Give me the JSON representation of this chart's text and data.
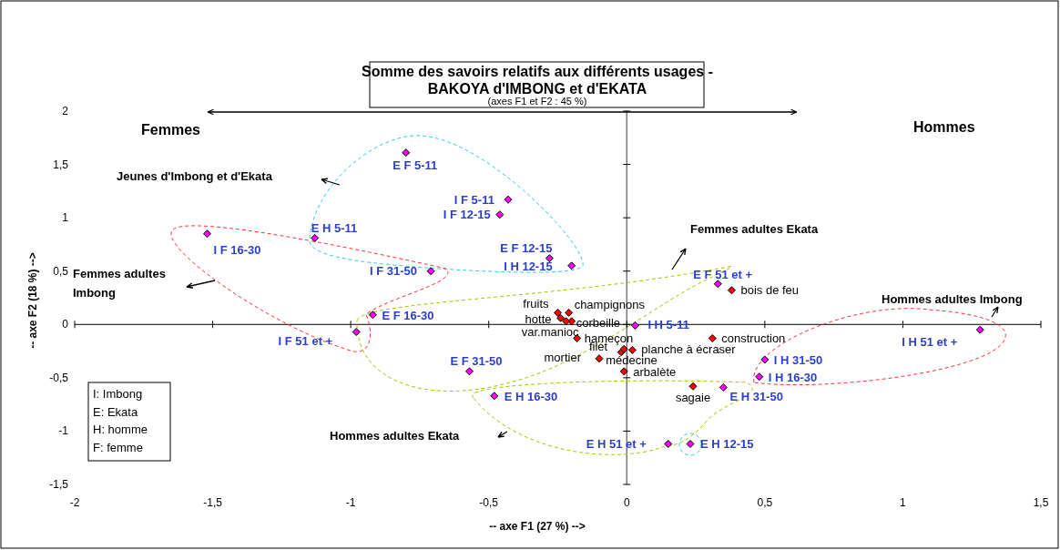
{
  "chart_data": {
    "type": "scatter",
    "title": "Somme des savoirs relatifs aux différents usages - BAKOYA d'IMBONG et d'EKATA",
    "subtitle": "(axes F1 et F2 : 45 %)",
    "xlabel": "-- axe F1 (27 %) -->",
    "ylabel": "-- axe F2 (18 %) -->",
    "xlim": [
      -2,
      1.5
    ],
    "ylim": [
      -1.5,
      2
    ],
    "xticks": [
      -2,
      {
        "value": -1.5,
        "label": "-1,5"
      },
      -1,
      {
        "value": -0.5,
        "label": "-0,5"
      },
      0,
      {
        "value": 0.5,
        "label": "0,5"
      },
      1,
      {
        "value": 1.5,
        "label": "1,5"
      }
    ],
    "yticks": [
      {
        "value": -1.5,
        "label": "-1,5"
      },
      -1,
      {
        "value": -0.5,
        "label": "-0,5"
      },
      0,
      {
        "value": 0.5,
        "label": "0,5"
      },
      1,
      {
        "value": 1.5,
        "label": "1,5"
      },
      2
    ],
    "marker": "diamond",
    "series": [
      {
        "color": "#ff00ff",
        "x": [
          -0.8,
          -0.43,
          -0.46,
          -1.13,
          -1.52,
          -0.28,
          -0.2,
          -0.71,
          0.33,
          -0.92,
          -0.98,
          0.03,
          -0.57,
          0.5,
          0.48,
          -0.48,
          0.35,
          0.15,
          0.23,
          1.28
        ],
        "values": [
          1.61,
          1.17,
          1.03,
          0.81,
          0.85,
          0.62,
          0.55,
          0.5,
          0.38,
          0.09,
          -0.07,
          -0.01,
          -0.44,
          -0.33,
          -0.49,
          -0.67,
          -0.59,
          -1.12,
          -1.12,
          -0.05
        ],
        "value_labels": [
          "E F 5-11",
          "I F 5-11",
          "I F 12-15",
          "E H 5-11",
          "I F 16-30",
          "E F 12-15",
          "I H 12-15",
          "I F 31-50",
          "E F 51 et +",
          "E F 16-30",
          "I F 51 et +",
          "I H 5-11",
          "E F 31-50",
          "I H 31-50",
          "I H 16-30",
          "E H 16-30",
          "E H 31-50",
          "E H 51 et +",
          "E H 12-15",
          "I H 51 et +"
        ]
      },
      {
        "color": "#ff0000",
        "x": [
          -0.25,
          -0.21,
          -0.24,
          -0.2,
          -0.22,
          -0.18,
          -0.02,
          0.02,
          -0.01,
          -0.1,
          -0.01,
          0.31,
          0.38,
          0.24
        ],
        "values": [
          0.11,
          0.11,
          0.06,
          0.03,
          0.03,
          -0.13,
          -0.26,
          -0.24,
          -0.23,
          -0.32,
          -0.44,
          -0.13,
          0.32,
          -0.58
        ],
        "value_labels": [
          "fruits",
          "champignons",
          "hotte",
          "corbeille",
          "var.manioc",
          "hameçon",
          "filet",
          "planche à écraser",
          "médecine",
          "mortier",
          "arbalète",
          "construction",
          "bois de feu",
          "sagaie"
        ]
      }
    ],
    "annotations": [
      "Femmes",
      "Hommes",
      "Jeunes d'Imbong et d'Ekata",
      "Femmes adultes Ekata",
      "Femmes adultes Imbong",
      "Hommes adultes Imbong",
      "Hommes adultes Ekata",
      "I: Imbong",
      "E: Ekata",
      "H: homme",
      "F: femme"
    ]
  }
}
